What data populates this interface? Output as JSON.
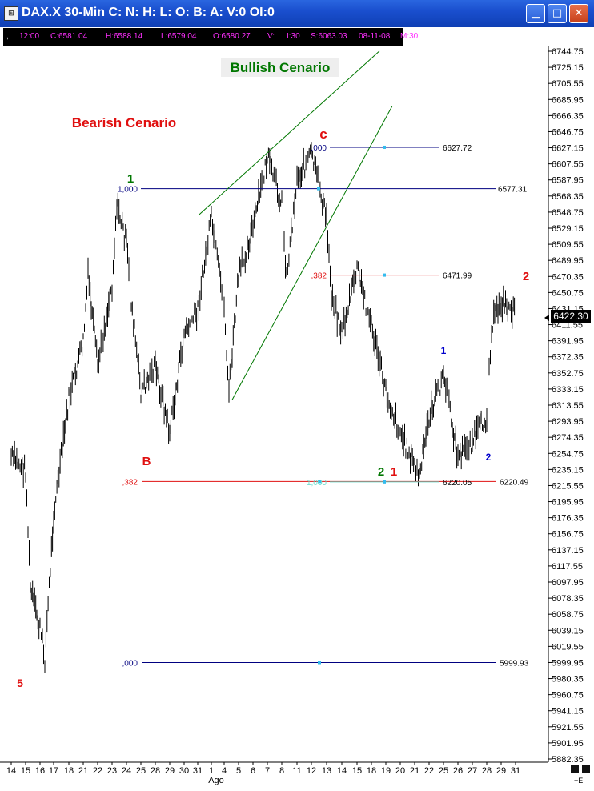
{
  "window": {
    "title": "DAX.X 30-Min C: N: H: L: O: B: A: V:0 OI:0",
    "app_icon": "chart-app-icon",
    "buttons": [
      "minimize-icon",
      "maximize-icon",
      "close-icon"
    ]
  },
  "infobar": {
    "marker": ",",
    "time": "12:00",
    "close": "C:6581.04",
    "high": "H:6588.14",
    "low": "L:6579.04",
    "open": "O:6580.27",
    "volume": "V:",
    "interval": "I:30",
    "s": "S:6063.03",
    "date": "08-11-08",
    "m": "M:30"
  },
  "last_price": "6422.30",
  "ei_label": "+EI",
  "colors": {
    "green": "#007700",
    "red": "#e01010",
    "navy": "#000080",
    "blue": "#0000cc",
    "cyan": "#66ddcc",
    "magenta": "#ff2fff"
  },
  "chart_data": {
    "type": "line",
    "series_style": "high-low bars (30-min)",
    "ylim": [
      5882.35,
      6744.75
    ],
    "yticks": [
      "6744.75",
      "6725.15",
      "6705.55",
      "6685.95",
      "6666.35",
      "6646.75",
      "6627.15",
      "6607.55",
      "6587.95",
      "6568.35",
      "6548.75",
      "6529.15",
      "6509.55",
      "6489.95",
      "6470.35",
      "6450.75",
      "6431.15",
      "6411.55",
      "6391.95",
      "6372.35",
      "6352.75",
      "6333.15",
      "6313.55",
      "6293.95",
      "6274.35",
      "6254.75",
      "6235.15",
      "6215.55",
      "6195.95",
      "6176.35",
      "6156.75",
      "6137.15",
      "6117.55",
      "6097.95",
      "6078.35",
      "6058.75",
      "6039.15",
      "6019.55",
      "5999.95",
      "5980.35",
      "5960.75",
      "5941.15",
      "5921.55",
      "5901.95",
      "5882.35"
    ],
    "xticks": [
      "14",
      "15",
      "16",
      "17",
      "18",
      "21",
      "22",
      "23",
      "24",
      "25",
      "28",
      "29",
      "30",
      "31",
      "1",
      "4",
      "5",
      "6",
      "7",
      "8",
      "11",
      "12",
      "13",
      "14",
      "15",
      "18",
      "19",
      "20",
      "21",
      "22",
      "25",
      "26",
      "27",
      "28",
      "29",
      "31"
    ],
    "month_label": "Ago",
    "path": [
      {
        "day": "14",
        "price": 6250
      },
      {
        "day": "15",
        "price": 6235
      },
      {
        "day": "15",
        "price": 6090
      },
      {
        "day": "16",
        "price": 6040
      },
      {
        "day": "16",
        "price": 6005
      },
      {
        "day": "17",
        "price": 6180
      },
      {
        "day": "18",
        "price": 6320
      },
      {
        "day": "21",
        "price": 6390
      },
      {
        "day": "21",
        "price": 6470
      },
      {
        "day": "22",
        "price": 6360
      },
      {
        "day": "23",
        "price": 6460
      },
      {
        "day": "23",
        "price": 6560
      },
      {
        "day": "24",
        "price": 6510
      },
      {
        "day": "24",
        "price": 6440
      },
      {
        "day": "25",
        "price": 6330
      },
      {
        "day": "28",
        "price": 6360
      },
      {
        "day": "29",
        "price": 6280
      },
      {
        "day": "30",
        "price": 6400
      },
      {
        "day": "31",
        "price": 6430
      },
      {
        "day": "1",
        "price": 6540
      },
      {
        "day": "4",
        "price": 6430
      },
      {
        "day": "4",
        "price": 6330
      },
      {
        "day": "5",
        "price": 6470
      },
      {
        "day": "6",
        "price": 6530
      },
      {
        "day": "7",
        "price": 6615
      },
      {
        "day": "8",
        "price": 6560
      },
      {
        "day": "8",
        "price": 6470
      },
      {
        "day": "11",
        "price": 6590
      },
      {
        "day": "12",
        "price": 6620
      },
      {
        "day": "13",
        "price": 6540
      },
      {
        "day": "13",
        "price": 6450
      },
      {
        "day": "14",
        "price": 6400
      },
      {
        "day": "15",
        "price": 6480
      },
      {
        "day": "18",
        "price": 6410
      },
      {
        "day": "19",
        "price": 6330
      },
      {
        "day": "20",
        "price": 6280
      },
      {
        "day": "21",
        "price": 6240
      },
      {
        "day": "21",
        "price": 6225
      },
      {
        "day": "22",
        "price": 6300
      },
      {
        "day": "25",
        "price": 6350
      },
      {
        "day": "26",
        "price": 6250
      },
      {
        "day": "27",
        "price": 6270
      },
      {
        "day": "28",
        "price": 6300
      },
      {
        "day": "28",
        "price": 6410
      },
      {
        "day": "29",
        "price": 6440
      },
      {
        "day": "31",
        "price": 6425
      }
    ],
    "fib_levels": [
      {
        "label": ",000",
        "price": 6627.72,
        "value_label": "6627.72",
        "color": "#000080"
      },
      {
        "label": "1,000",
        "price": 6577.31,
        "value_label": "6577.31",
        "color": "#000080"
      },
      {
        "label": ",382",
        "price": 6471.99,
        "value_label": "6471.99",
        "color": "#e01010"
      },
      {
        "label": ",382",
        "price": 6220.49,
        "value_label": "6220.49",
        "color": "#e01010"
      },
      {
        "label": "1,000",
        "price": 6220.05,
        "value_label": "6220.05",
        "color": "#66ddcc"
      },
      {
        "label": ",000",
        "price": 5999.93,
        "value_label": "5999.93",
        "color": "#000080"
      }
    ],
    "annotations": [
      {
        "text": "Bullish Cenario",
        "color": "#007700"
      },
      {
        "text": "Bearish Cenario",
        "color": "#e01010"
      },
      {
        "text": "c",
        "color": "#e01010"
      },
      {
        "text": "1",
        "color": "#007700"
      },
      {
        "text": "B",
        "color": "#e01010"
      },
      {
        "text": "5",
        "color": "#e01010"
      },
      {
        "text": "2",
        "color": "#007700"
      },
      {
        "text": "1",
        "color": "#e01010"
      },
      {
        "text": "1",
        "color": "#0000cc"
      },
      {
        "text": "2",
        "color": "#0000cc"
      },
      {
        "text": "2",
        "color": "#e01010"
      }
    ],
    "trendlines": [
      {
        "name": "channel-upper",
        "from": {
          "day": "31",
          "price": 6545
        },
        "to": {
          "day": "19",
          "price": 6745
        }
      },
      {
        "name": "channel-lower",
        "from": {
          "day": "5",
          "price": 6320
        },
        "to": {
          "day": "19",
          "price": 6678
        }
      }
    ]
  }
}
